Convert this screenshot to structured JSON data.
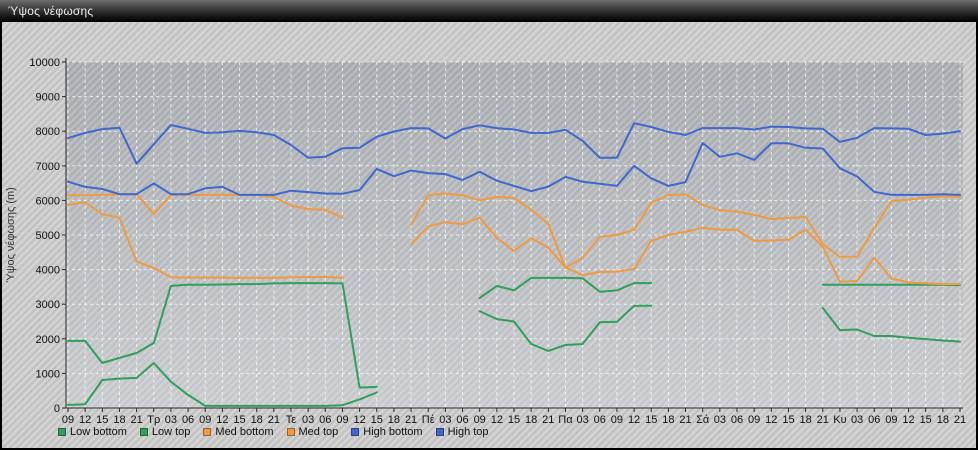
{
  "window": {
    "title": "Ύψος νέφωσης"
  },
  "chart_data": {
    "type": "line",
    "title": "Ύψος νέφωσης",
    "xlabel": "",
    "ylabel": "Ύψος νέφωσης (m)",
    "ylim": [
      0,
      10000
    ],
    "yticks": [
      0,
      1000,
      2000,
      3000,
      4000,
      5000,
      6000,
      7000,
      8000,
      9000,
      10000
    ],
    "grid": true,
    "legend_position": "bottom",
    "categories": [
      "09",
      "12",
      "15",
      "18",
      "21",
      "Τρ",
      "03",
      "06",
      "09",
      "12",
      "15",
      "18",
      "21",
      "Τε",
      "03",
      "06",
      "09",
      "12",
      "15",
      "18",
      "21",
      "Πέ",
      "03",
      "06",
      "09",
      "12",
      "15",
      "18",
      "21",
      "Πα",
      "03",
      "06",
      "09",
      "12",
      "15",
      "18",
      "21",
      "Σά",
      "03",
      "06",
      "09",
      "12",
      "15",
      "18",
      "21",
      "Κυ",
      "03",
      "06",
      "09",
      "12",
      "15",
      "18",
      "21"
    ],
    "series": [
      {
        "name": "Low bottom",
        "color": "#2F9E5F",
        "values": [
          90,
          110,
          810,
          850,
          870,
          1300,
          760,
          380,
          60,
          60,
          60,
          60,
          60,
          60,
          60,
          60,
          80,
          250,
          450,
          null,
          null,
          null,
          null,
          null,
          2800,
          2570,
          2500,
          1850,
          1650,
          1820,
          1850,
          2480,
          2490,
          2950,
          2960,
          null,
          null,
          null,
          null,
          null,
          null,
          null,
          null,
          null,
          2890,
          2250,
          2270,
          2080,
          2080,
          2030,
          1990,
          1950,
          1920
        ]
      },
      {
        "name": "Low top",
        "color": "#2F9E5F",
        "values": [
          1940,
          1940,
          1300,
          1450,
          1590,
          1880,
          3530,
          3560,
          3560,
          3570,
          3580,
          3580,
          3600,
          3610,
          3610,
          3610,
          3600,
          590,
          610,
          null,
          null,
          null,
          null,
          null,
          3180,
          3530,
          3400,
          3760,
          3760,
          3760,
          3750,
          3360,
          3400,
          3610,
          3610,
          null,
          null,
          null,
          null,
          null,
          null,
          null,
          null,
          null,
          3560,
          3560,
          3560,
          3560,
          3560,
          3560,
          3560,
          3560,
          3550
        ]
      },
      {
        "name": "Med bottom",
        "color": "#F09A40",
        "values": [
          5870,
          5950,
          5600,
          5500,
          4230,
          4050,
          3780,
          3770,
          3770,
          3770,
          3760,
          3760,
          3760,
          3780,
          3780,
          3790,
          3760,
          null,
          null,
          null,
          4740,
          5250,
          5370,
          5310,
          5500,
          4920,
          4540,
          4910,
          4630,
          4060,
          3840,
          3930,
          3940,
          4020,
          4830,
          5000,
          5090,
          5210,
          5150,
          5150,
          4830,
          4840,
          4860,
          5150,
          4660,
          3650,
          3670,
          4340,
          3740,
          3630,
          3600,
          3580,
          3580
        ]
      },
      {
        "name": "Med top",
        "color": "#F09A40",
        "values": [
          6150,
          6150,
          6160,
          6180,
          6180,
          5600,
          6160,
          6160,
          6160,
          6160,
          6160,
          6160,
          6100,
          5850,
          5750,
          5730,
          5500,
          null,
          null,
          null,
          5300,
          6150,
          6200,
          6150,
          6000,
          6100,
          6070,
          5730,
          5320,
          4050,
          4340,
          4950,
          5000,
          5150,
          5930,
          6160,
          6170,
          5870,
          5720,
          5670,
          5580,
          5460,
          5490,
          5520,
          4740,
          4370,
          4370,
          5200,
          5980,
          6020,
          6080,
          6120,
          6100
        ]
      },
      {
        "name": "High bottom",
        "color": "#3F68CE",
        "values": [
          6540,
          6390,
          6330,
          6180,
          6180,
          6490,
          6180,
          6180,
          6350,
          6390,
          6160,
          6160,
          6160,
          6280,
          6240,
          6200,
          6190,
          6300,
          6910,
          6700,
          6860,
          6790,
          6760,
          6590,
          6830,
          6570,
          6420,
          6270,
          6400,
          6680,
          6540,
          6480,
          6420,
          7000,
          6640,
          6420,
          6530,
          7660,
          7260,
          7360,
          7170,
          7650,
          7650,
          7520,
          7500,
          6930,
          6690,
          6250,
          6160,
          6160,
          6160,
          6180,
          6160
        ]
      },
      {
        "name": "High top",
        "color": "#3F68CE",
        "values": [
          7800,
          7950,
          8060,
          8100,
          7060,
          7620,
          8180,
          8070,
          7950,
          7970,
          8010,
          7970,
          7890,
          7600,
          7230,
          7260,
          7510,
          7520,
          7840,
          7990,
          8090,
          8080,
          7790,
          8060,
          8170,
          8090,
          8050,
          7950,
          7950,
          8040,
          7720,
          7230,
          7230,
          8230,
          8120,
          7980,
          7890,
          8090,
          8090,
          8090,
          8050,
          8130,
          8120,
          8080,
          8070,
          7690,
          7810,
          8090,
          8080,
          8070,
          7890,
          7930,
          8000
        ]
      }
    ],
    "colors": {
      "low": "#2F9E5F",
      "med": "#F09A40",
      "high": "#3F68CE",
      "plot_bg_top": "#a5a8ac",
      "plot_bg_bottom": "#c7c9cc",
      "gridline": "#ffffff",
      "axis": "#2b2b2b"
    }
  }
}
